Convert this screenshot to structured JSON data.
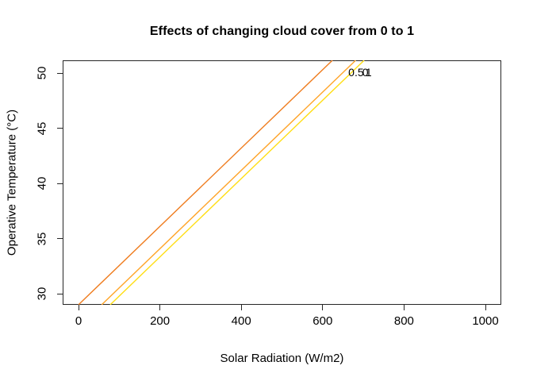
{
  "chart_data": {
    "type": "line",
    "title": "Effects of changing cloud cover from 0 to 1",
    "xlabel": "Solar Radiation (W/m2)",
    "ylabel": "Operative Temperature (°C)",
    "xlim": [
      -39,
      1039
    ],
    "ylim": [
      28.99,
      51.15
    ],
    "x_ticks": [
      0,
      200,
      400,
      600,
      800,
      1000
    ],
    "y_ticks": [
      30,
      35,
      40,
      45,
      50
    ],
    "grid": false,
    "legend_position": "none",
    "box_color": "#262626",
    "series": [
      {
        "name": "cloud-cover-0",
        "label": "0",
        "color": "#EF7C1E",
        "points": [
          [
            0,
            29.0
          ],
          [
            624,
            51.15
          ]
        ]
      },
      {
        "name": "cloud-cover-0.5",
        "label": "0.5",
        "color": "#FFA428",
        "points": [
          [
            57,
            29.0
          ],
          [
            681,
            51.15
          ]
        ]
      },
      {
        "name": "cloud-cover-1",
        "label": "1",
        "color": "#FFDE12",
        "points": [
          [
            78,
            29.0
          ],
          [
            702,
            51.15
          ]
        ]
      }
    ],
    "annotation": {
      "note": "cloud cover value labels drawn at line ends, visually overlapping",
      "y": 50.1,
      "labels": [
        {
          "text": "0.5",
          "x": 682
        },
        {
          "text": "0",
          "x": 705
        },
        {
          "text": "1",
          "x": 713
        }
      ]
    }
  }
}
